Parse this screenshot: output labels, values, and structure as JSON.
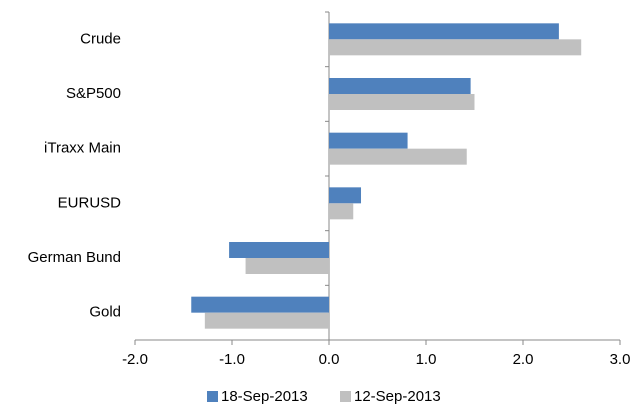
{
  "chart_data": {
    "type": "hbar",
    "categories": [
      "Crude",
      "S&P500",
      "iTraxx Main",
      "EURUSD",
      "German Bund",
      "Gold"
    ],
    "series": [
      {
        "name": "18-Sep-2013",
        "color": "#4f81bd",
        "values": [
          2.37,
          1.46,
          0.81,
          0.33,
          -1.03,
          -1.42
        ]
      },
      {
        "name": "12-Sep-2013",
        "color": "#c0c0c0",
        "values": [
          2.6,
          1.5,
          1.42,
          0.25,
          -0.86,
          -1.28
        ]
      }
    ],
    "xlim": [
      -2,
      3
    ],
    "xticks": [
      {
        "value": -2,
        "label": "-2.0"
      },
      {
        "value": -1,
        "label": "-1.0"
      },
      {
        "value": 0,
        "label": "0.0"
      },
      {
        "value": 1,
        "label": "1.0"
      },
      {
        "value": 2,
        "label": "2.0"
      },
      {
        "value": 3,
        "label": "3.0"
      }
    ],
    "grid": false
  }
}
